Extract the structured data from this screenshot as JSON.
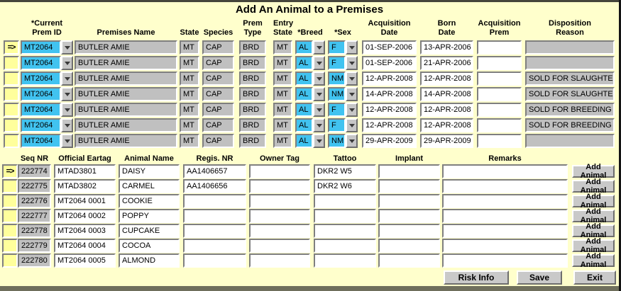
{
  "title": "Add An Animal to a Premises",
  "indicator_symbol": "=>",
  "colors": {
    "background": "#FFFFCC",
    "field_gray": "#C0C0C0",
    "field_cyan": "#41C3F0",
    "indicator_yellow": "#FFFF9C",
    "button_gray": "#C9C9C9"
  },
  "premises_section": {
    "headers": {
      "current_prem_id": {
        "l1": "*Current",
        "l2": "Prem ID"
      },
      "premises_name": {
        "l1": "",
        "l2": "Premises Name"
      },
      "state": {
        "l1": "",
        "l2": "State"
      },
      "species": {
        "l1": "",
        "l2": "Species"
      },
      "prem_type": {
        "l1": "Prem",
        "l2": "Type"
      },
      "entry_state": {
        "l1": "Entry",
        "l2": "State"
      },
      "breed": {
        "l1": "",
        "l2": "*Breed"
      },
      "sex": {
        "l1": "",
        "l2": "*Sex"
      },
      "acquisition_date": {
        "l1": "Acquisition",
        "l2": "Date"
      },
      "born_date": {
        "l1": "Born",
        "l2": "Date"
      },
      "acquisition_prem": {
        "l1": "Acquisition",
        "l2": "Prem"
      },
      "disposition": {
        "l1": "Disposition",
        "l2": "Reason"
      }
    },
    "rows": [
      {
        "indicator": "=>",
        "prem_id": "MT2064",
        "premises_name": "BUTLER AMIE",
        "state": "MT",
        "species": "CAP",
        "prem_type": "BRD",
        "entry_state": "MT",
        "breed": "AL",
        "sex": "F",
        "acquisition_date": "01-SEP-2006",
        "born_date": "13-APR-2006",
        "acquisition_prem": "",
        "disposition_reason": ""
      },
      {
        "indicator": "",
        "prem_id": "MT2064",
        "premises_name": "BUTLER AMIE",
        "state": "MT",
        "species": "CAP",
        "prem_type": "BRD",
        "entry_state": "MT",
        "breed": "AL",
        "sex": "F",
        "acquisition_date": "01-SEP-2006",
        "born_date": "21-APR-2006",
        "acquisition_prem": "",
        "disposition_reason": ""
      },
      {
        "indicator": "",
        "prem_id": "MT2064",
        "premises_name": "BUTLER AMIE",
        "state": "MT",
        "species": "CAP",
        "prem_type": "BRD",
        "entry_state": "MT",
        "breed": "AL",
        "sex": "NM",
        "acquisition_date": "12-APR-2008",
        "born_date": "12-APR-2008",
        "acquisition_prem": "",
        "disposition_reason": "SOLD FOR SLAUGHTER"
      },
      {
        "indicator": "",
        "prem_id": "MT2064",
        "premises_name": "BUTLER AMIE",
        "state": "MT",
        "species": "CAP",
        "prem_type": "BRD",
        "entry_state": "MT",
        "breed": "AL",
        "sex": "NM",
        "acquisition_date": "14-APR-2008",
        "born_date": "14-APR-2008",
        "acquisition_prem": "",
        "disposition_reason": "SOLD FOR SLAUGHTER"
      },
      {
        "indicator": "",
        "prem_id": "MT2064",
        "premises_name": "BUTLER AMIE",
        "state": "MT",
        "species": "CAP",
        "prem_type": "BRD",
        "entry_state": "MT",
        "breed": "AL",
        "sex": "F",
        "acquisition_date": "12-APR-2008",
        "born_date": "12-APR-2008",
        "acquisition_prem": "",
        "disposition_reason": "SOLD FOR BREEDING"
      },
      {
        "indicator": "",
        "prem_id": "MT2064",
        "premises_name": "BUTLER AMIE",
        "state": "MT",
        "species": "CAP",
        "prem_type": "BRD",
        "entry_state": "MT",
        "breed": "AL",
        "sex": "F",
        "acquisition_date": "12-APR-2008",
        "born_date": "12-APR-2008",
        "acquisition_prem": "",
        "disposition_reason": "SOLD FOR BREEDING"
      },
      {
        "indicator": "",
        "prem_id": "MT2064",
        "premises_name": "BUTLER AMIE",
        "state": "MT",
        "species": "CAP",
        "prem_type": "BRD",
        "entry_state": "MT",
        "breed": "AL",
        "sex": "NM",
        "acquisition_date": "29-APR-2009",
        "born_date": "29-APR-2009",
        "acquisition_prem": "",
        "disposition_reason": ""
      }
    ]
  },
  "animals_section": {
    "headers": {
      "seq_nr": "Seq NR",
      "official_eartag": "Official Eartag",
      "animal_name": "Animal Name",
      "regis_nr": "Regis. NR",
      "owner_tag": "Owner Tag",
      "tattoo": "Tattoo",
      "implant": "Implant",
      "remarks": "Remarks"
    },
    "add_button_label": "Add Animal",
    "rows": [
      {
        "indicator": "=>",
        "seq_nr": "222774",
        "official_eartag": "MTAD3801",
        "animal_name": "DAISY",
        "regis_nr": "AA1406657",
        "owner_tag": "",
        "tattoo": "DKR2 W5",
        "implant": "",
        "remarks": ""
      },
      {
        "indicator": "",
        "seq_nr": "222775",
        "official_eartag": "MTAD3802",
        "animal_name": "CARMEL",
        "regis_nr": "AA1406656",
        "owner_tag": "",
        "tattoo": "DKR2 W6",
        "implant": "",
        "remarks": ""
      },
      {
        "indicator": "",
        "seq_nr": "222776",
        "official_eartag": "MT2064 0001",
        "animal_name": "COOKIE",
        "regis_nr": "",
        "owner_tag": "",
        "tattoo": "",
        "implant": "",
        "remarks": ""
      },
      {
        "indicator": "",
        "seq_nr": "222777",
        "official_eartag": "MT2064 0002",
        "animal_name": "POPPY",
        "regis_nr": "",
        "owner_tag": "",
        "tattoo": "",
        "implant": "",
        "remarks": ""
      },
      {
        "indicator": "",
        "seq_nr": "222778",
        "official_eartag": "MT2064 0003",
        "animal_name": "CUPCAKE",
        "regis_nr": "",
        "owner_tag": "",
        "tattoo": "",
        "implant": "",
        "remarks": ""
      },
      {
        "indicator": "",
        "seq_nr": "222779",
        "official_eartag": "MT2064 0004",
        "animal_name": "COCOA",
        "regis_nr": "",
        "owner_tag": "",
        "tattoo": "",
        "implant": "",
        "remarks": ""
      },
      {
        "indicator": "",
        "seq_nr": "222780",
        "official_eartag": "MT2064 0005",
        "animal_name": "ALMOND",
        "regis_nr": "",
        "owner_tag": "",
        "tattoo": "",
        "implant": "",
        "remarks": ""
      }
    ]
  },
  "footer": {
    "risk_info": "Risk Info",
    "save": "Save",
    "exit": "Exit"
  }
}
